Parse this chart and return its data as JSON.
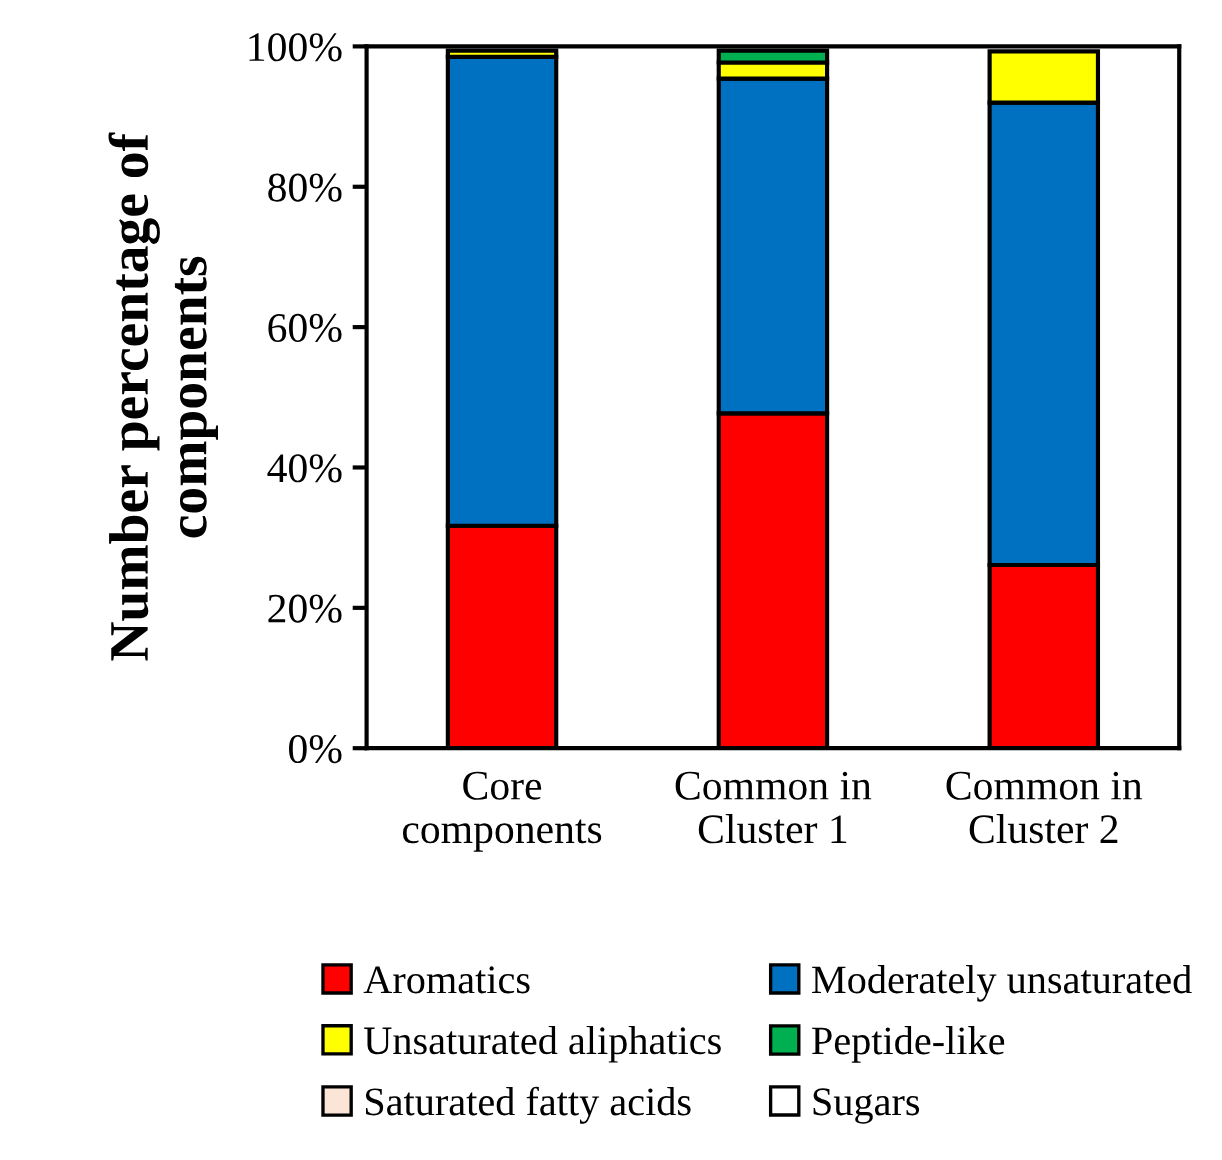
{
  "chart_data": {
    "type": "bar",
    "stacked": true,
    "ylabel": "Number percentage of components",
    "categories": [
      "Core\ncomponents",
      "Common in\nCluster 1",
      "Common in\nCluster 2"
    ],
    "series": [
      {
        "name": "Aromatics",
        "color": "#ff0000",
        "values": [
          31.7,
          47.7,
          26.1
        ]
      },
      {
        "name": "Moderately unsaturated",
        "color": "#0070c0",
        "values": [
          66.8,
          47.7,
          65.9
        ]
      },
      {
        "name": "Unsaturated aliphatics",
        "color": "#ffff00",
        "values": [
          0.9,
          2.3,
          7.3
        ]
      },
      {
        "name": "Peptide-like",
        "color": "#00b050",
        "values": [
          null,
          1.7,
          null
        ]
      },
      {
        "name": "Saturated fatty acids",
        "color": "#fbe5d6",
        "values": [
          null,
          null,
          null
        ]
      },
      {
        "name": "Sugars",
        "color": "#ffffff",
        "values": [
          null,
          null,
          null
        ]
      }
    ],
    "ylim": [
      0,
      100
    ],
    "yticks": [
      {
        "value": 0,
        "label": "0%"
      },
      {
        "value": 20,
        "label": "20%"
      },
      {
        "value": 40,
        "label": "40%"
      },
      {
        "value": 60,
        "label": "60%"
      },
      {
        "value": 80,
        "label": "80%"
      },
      {
        "value": 100,
        "label": "100%"
      }
    ],
    "grid": false,
    "legend": "bottom"
  }
}
